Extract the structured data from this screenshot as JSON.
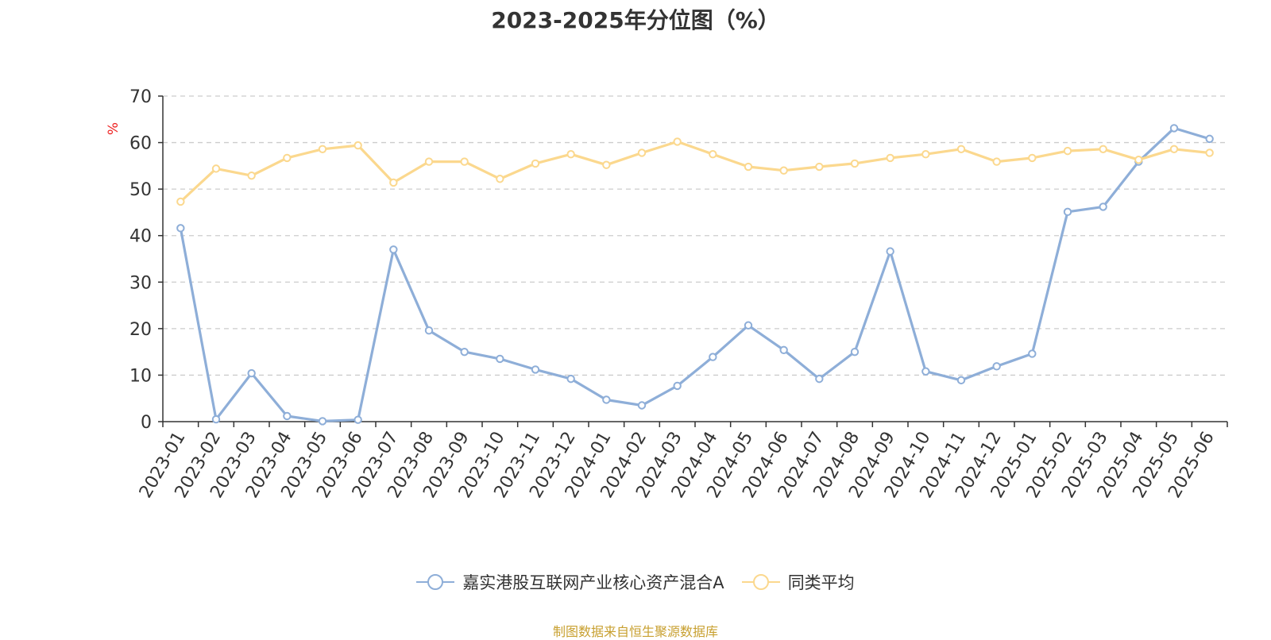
{
  "chart_data": {
    "type": "line",
    "title": "2023-2025年分位图（%）",
    "ylabel": "%",
    "ylim": [
      0,
      70
    ],
    "yticks": [
      0,
      10,
      20,
      30,
      40,
      50,
      60,
      70
    ],
    "grid": true,
    "legend_position": "bottom",
    "categories": [
      "2023-01",
      "2023-02",
      "2023-03",
      "2023-04",
      "2023-05",
      "2023-06",
      "2023-07",
      "2023-08",
      "2023-09",
      "2023-10",
      "2023-11",
      "2023-12",
      "2024-01",
      "2024-02",
      "2024-03",
      "2024-04",
      "2024-05",
      "2024-06",
      "2024-07",
      "2024-08",
      "2024-09",
      "2024-10",
      "2024-11",
      "2024-12",
      "2025-01",
      "2025-02",
      "2025-03",
      "2025-04",
      "2025-05",
      "2025-06"
    ],
    "series": [
      {
        "name": "嘉实港股互联网产业核心资产混合A",
        "color": "#8eaed8",
        "values": [
          41.6,
          0.5,
          10.4,
          1.2,
          0.1,
          0.4,
          37.0,
          19.6,
          15.0,
          13.5,
          11.2,
          9.2,
          4.7,
          3.5,
          7.7,
          13.9,
          20.7,
          15.4,
          9.2,
          15.0,
          36.6,
          10.8,
          8.9,
          11.9,
          14.6,
          45.1,
          46.2,
          55.9,
          63.1,
          60.8
        ]
      },
      {
        "name": "同类平均",
        "color": "#fbd88e",
        "values": [
          47.3,
          54.4,
          52.9,
          56.7,
          58.6,
          59.4,
          51.4,
          55.9,
          55.9,
          52.2,
          55.5,
          57.5,
          55.2,
          57.8,
          60.2,
          57.5,
          54.8,
          54.0,
          54.8,
          55.5,
          56.7,
          57.5,
          58.6,
          55.9,
          56.7,
          58.2,
          58.6,
          56.3,
          58.6,
          57.8
        ]
      }
    ]
  },
  "source_text": "制图数据来自恒生聚源数据库"
}
